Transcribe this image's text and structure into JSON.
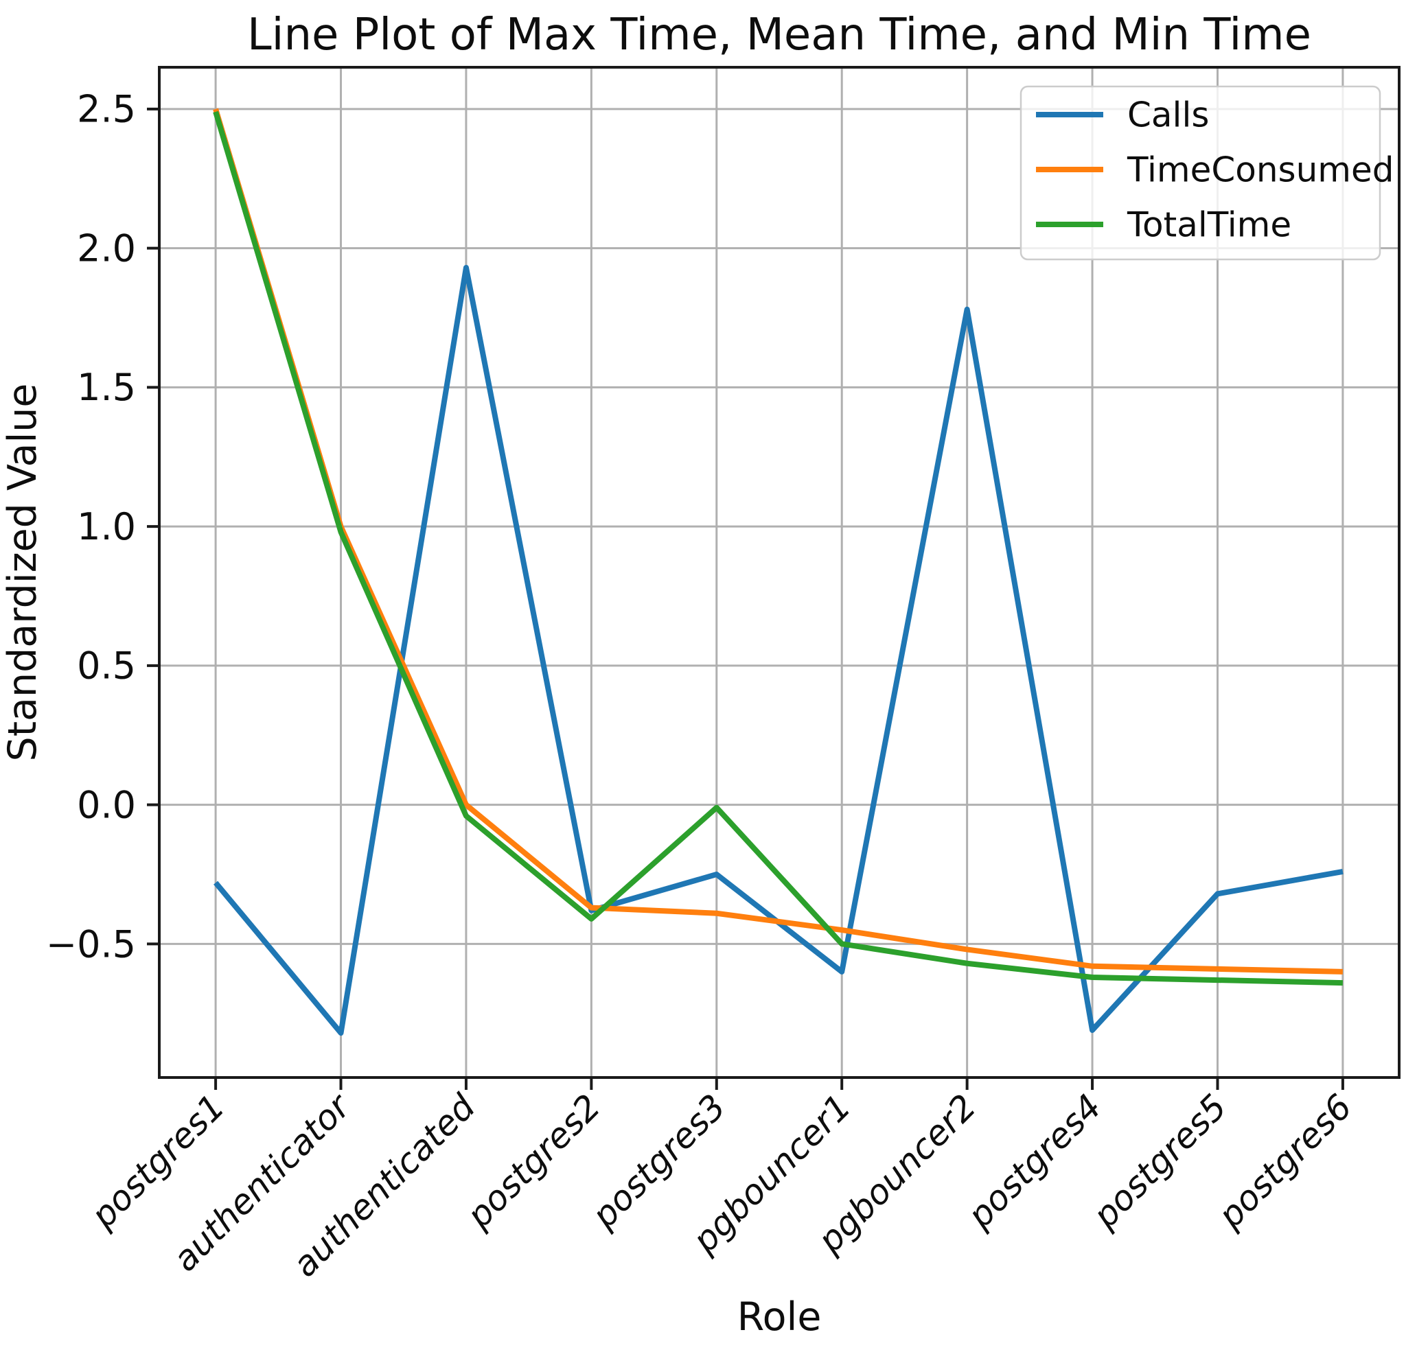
{
  "chart_data": {
    "type": "line",
    "title": "Line Plot of Max Time, Mean Time, and Min Time",
    "xlabel": "Role",
    "ylabel": "Standardized Value",
    "categories": [
      "postgres1",
      "authenticator",
      "authenticated",
      "postgres2",
      "postgres3",
      "pgbouncer1",
      "pgbouncer2",
      "postgres4",
      "postgres5",
      "postgres6"
    ],
    "series": [
      {
        "name": "Calls",
        "color": "#1f77b4",
        "values": [
          -0.28,
          -0.82,
          1.93,
          -0.38,
          -0.25,
          -0.6,
          1.78,
          -0.81,
          -0.32,
          -0.24
        ]
      },
      {
        "name": "TimeConsumed",
        "color": "#ff7f0e",
        "values": [
          2.5,
          1.0,
          0.0,
          -0.37,
          -0.39,
          -0.45,
          -0.52,
          -0.58,
          -0.59,
          -0.6
        ]
      },
      {
        "name": "TotalTime",
        "color": "#2ca02c",
        "values": [
          2.49,
          0.98,
          -0.04,
          -0.41,
          -0.01,
          -0.5,
          -0.57,
          -0.62,
          -0.63,
          -0.64
        ]
      }
    ],
    "ylim": [
      -0.98,
      2.65
    ],
    "yticks": [
      2.5,
      2.0,
      1.5,
      1.0,
      0.5,
      0.0,
      -0.5
    ],
    "ytick_labels": [
      "2.5",
      "2.0",
      "1.5",
      "1.0",
      "0.5",
      "0.0",
      "−0.5"
    ],
    "grid": true,
    "grid_color": "#b0b0b0",
    "spine_color": "#1a1a1a",
    "legend_position": "upper right",
    "legend_border_color": "#cccccc",
    "background_color": "#ffffff"
  }
}
